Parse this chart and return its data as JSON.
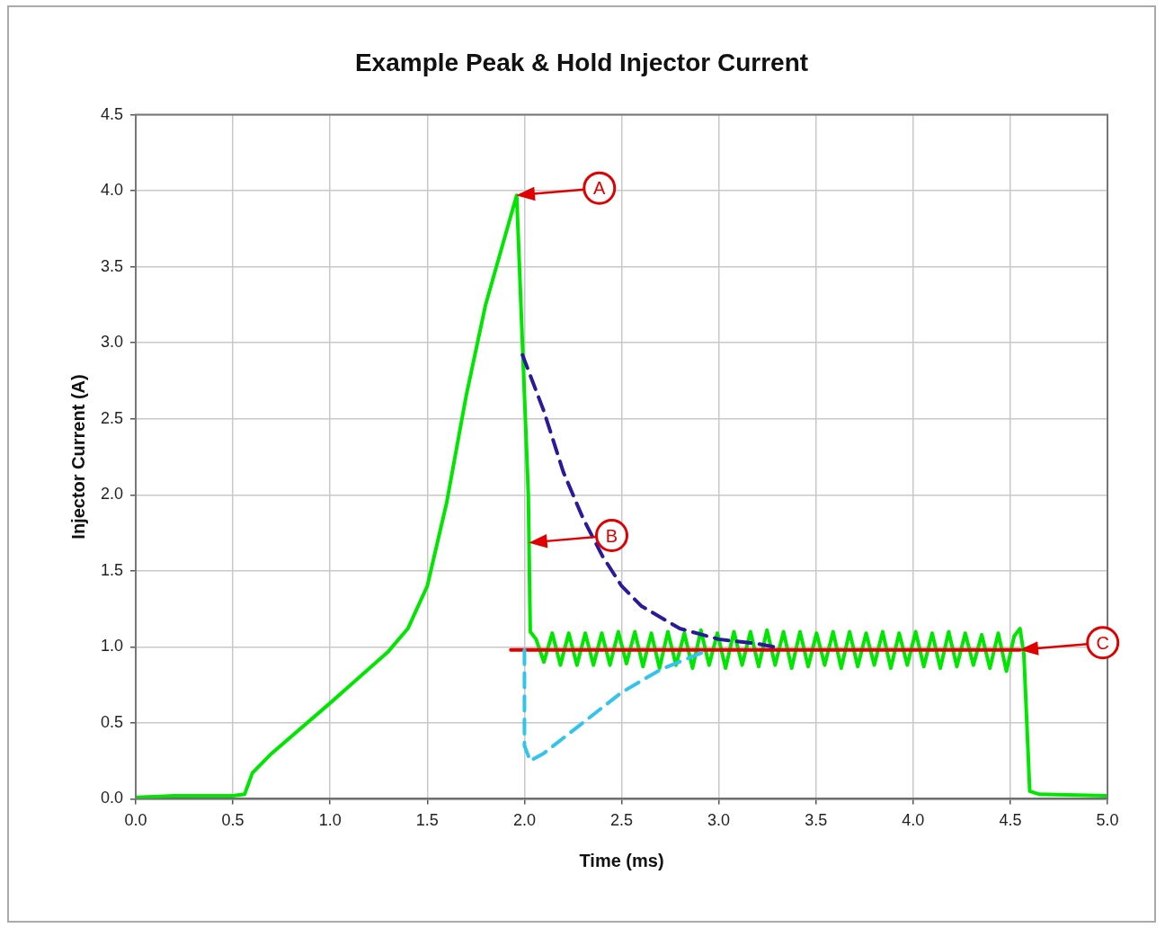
{
  "chart_data": {
    "type": "line",
    "title": "Example Peak & Hold Injector Current",
    "xlabel": "Time (ms)",
    "ylabel": "Injector Current (A)",
    "xlim": [
      0,
      5
    ],
    "ylim": [
      0,
      4.5
    ],
    "xticks": [
      {
        "value": 0,
        "label": "0.0"
      },
      {
        "value": 0.5,
        "label": "0.5"
      },
      {
        "value": 1,
        "label": "1.0"
      },
      {
        "value": 1.5,
        "label": "1.5"
      },
      {
        "value": 2,
        "label": "2.0"
      },
      {
        "value": 2.5,
        "label": "2.5"
      },
      {
        "value": 3,
        "label": "3.0"
      },
      {
        "value": 3.5,
        "label": "3.5"
      },
      {
        "value": 4,
        "label": "4.0"
      },
      {
        "value": 4.5,
        "label": "4.5"
      },
      {
        "value": 5,
        "label": "5.0"
      }
    ],
    "yticks": [
      {
        "value": 0,
        "label": "0.0"
      },
      {
        "value": 0.5,
        "label": "0.5"
      },
      {
        "value": 1,
        "label": "1.0"
      },
      {
        "value": 1.5,
        "label": "1.5"
      },
      {
        "value": 2,
        "label": "2.0"
      },
      {
        "value": 2.5,
        "label": "2.5"
      },
      {
        "value": 3,
        "label": "3.0"
      },
      {
        "value": 3.5,
        "label": "3.5"
      },
      {
        "value": 4,
        "label": "4.0"
      },
      {
        "value": 4.5,
        "label": "4.5"
      }
    ],
    "grid": true,
    "legend": false,
    "marker": "none",
    "series": [
      {
        "type": "line",
        "color": "#33c4ee",
        "line_style": "dashed",
        "x": [
          2.0,
          2.0,
          2.03,
          2.1,
          2.3,
          2.5,
          2.7,
          2.91
        ],
        "values": [
          0.98,
          0.35,
          0.25,
          0.3,
          0.5,
          0.7,
          0.85,
          0.96
        ]
      },
      {
        "type": "line",
        "color": "#2a1a9a",
        "line_style": "dashed",
        "x": [
          1.99,
          2.1,
          2.2,
          2.3,
          2.4,
          2.5,
          2.6,
          2.8,
          3.0,
          3.2,
          3.28
        ],
        "values": [
          2.92,
          2.55,
          2.15,
          1.85,
          1.6,
          1.4,
          1.27,
          1.12,
          1.05,
          1.02,
          1.0
        ]
      },
      {
        "type": "line",
        "color": "#e00000",
        "line_style": "solid",
        "x": [
          1.93,
          4.55
        ],
        "values": [
          0.98,
          0.98
        ]
      },
      {
        "type": "line",
        "color": "#00e600",
        "line_style": "solid",
        "x": [
          0,
          0.2,
          0.5,
          0.56,
          0.6,
          0.7,
          1.0,
          1.3,
          1.4,
          1.5,
          1.6,
          1.7,
          1.8,
          1.96,
          2.02,
          2.03,
          2.06,
          2.1,
          2.143,
          2.185,
          2.228,
          2.27,
          2.313,
          2.355,
          2.398,
          2.44,
          2.483,
          2.525,
          2.568,
          2.61,
          2.653,
          2.695,
          2.738,
          2.78,
          2.823,
          2.865,
          2.908,
          2.95,
          2.993,
          3.035,
          3.078,
          3.12,
          3.163,
          3.205,
          3.248,
          3.29,
          3.333,
          3.375,
          3.418,
          3.46,
          3.503,
          3.545,
          3.588,
          3.63,
          3.673,
          3.715,
          3.758,
          3.8,
          3.843,
          3.885,
          3.928,
          3.97,
          4.013,
          4.055,
          4.098,
          4.14,
          4.183,
          4.225,
          4.268,
          4.31,
          4.353,
          4.395,
          4.438,
          4.48,
          4.52,
          4.55,
          4.57,
          4.6,
          4.65,
          5.0
        ],
        "values": [
          0.01,
          0.02,
          0.02,
          0.03,
          0.17,
          0.3,
          0.63,
          0.97,
          1.12,
          1.4,
          1.95,
          2.65,
          3.25,
          3.97,
          2.0,
          1.1,
          1.05,
          0.9,
          1.09,
          0.88,
          1.09,
          0.88,
          1.09,
          0.88,
          1.09,
          0.88,
          1.1,
          0.89,
          1.1,
          0.87,
          1.09,
          0.86,
          1.1,
          0.88,
          1.09,
          0.86,
          1.11,
          0.88,
          1.09,
          0.86,
          1.1,
          0.88,
          1.1,
          0.87,
          1.11,
          0.88,
          1.1,
          0.86,
          1.1,
          0.87,
          1.09,
          0.88,
          1.1,
          0.86,
          1.1,
          0.87,
          1.09,
          0.88,
          1.1,
          0.86,
          1.09,
          0.88,
          1.1,
          0.87,
          1.09,
          0.86,
          1.1,
          0.87,
          1.09,
          0.88,
          1.08,
          0.86,
          1.09,
          0.84,
          1.07,
          1.12,
          0.95,
          0.05,
          0.03,
          0.02
        ]
      }
    ],
    "annotations": [
      "A",
      "B",
      "C"
    ]
  }
}
